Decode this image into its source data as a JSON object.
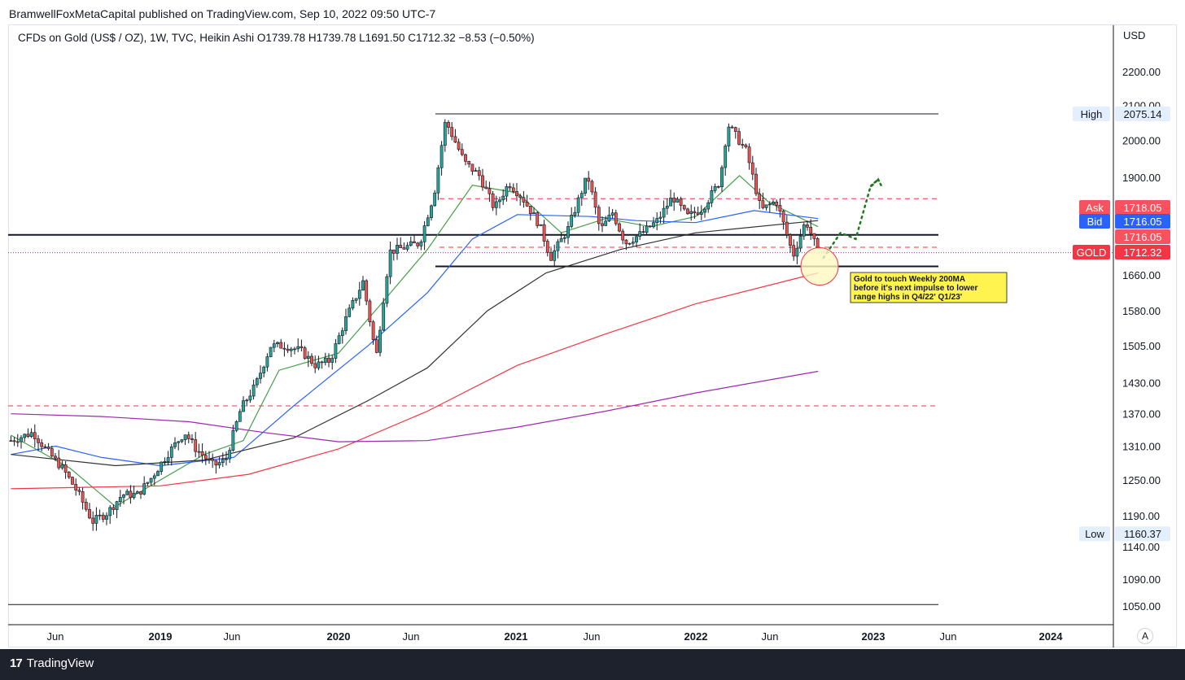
{
  "publisher": "BramwellFoxMetaCapital published on TradingView.com, Sep 10, 2022 09:50 UTC-7",
  "legend": "CFDs on Gold (US$ / OZ), 1W, TVC, Heikin Ashi  O1739.78  H1739.78  L1691.50  C1712.32  −8.53 (−0.50%)",
  "footer": {
    "logo_mark": "17",
    "logo_text": "TradingView"
  },
  "auto_button": "A",
  "colors": {
    "up": "#26a69a",
    "down": "#ef5350",
    "ma_green": "#43a047",
    "ma_blue": "#2962ff",
    "ma_black": "#333333",
    "ma_red": "#f23645",
    "ma_purple": "#9c27b0"
  },
  "chart_data": {
    "type": "candlestick",
    "symbol": "CFDs on Gold (US$ / OZ)",
    "timeframe": "1W",
    "chart_style": "Heikin Ashi",
    "ohlc_last": {
      "open": 1739.78,
      "high": 1739.78,
      "low": 1691.5,
      "close": 1712.32,
      "change": -8.53,
      "change_pct": -0.5
    },
    "y_axis": {
      "unit": "USD",
      "scale": "log",
      "ticks": [
        2200,
        2100,
        2000,
        1900,
        1660,
        1580,
        1505,
        1430,
        1370,
        1310,
        1250,
        1190,
        1140,
        1090,
        1050
      ]
    },
    "x_axis": {
      "ticks": [
        "Jun",
        "2019",
        "Jun",
        "2020",
        "Jun",
        "2021",
        "Jun",
        "2022",
        "Jun",
        "2023",
        "Jun",
        "2024"
      ]
    },
    "price_labels": [
      {
        "label": "High",
        "value": "2075.14"
      },
      {
        "label": "Ask",
        "value": "1718.05"
      },
      {
        "label": "Bid",
        "value": "1716.05"
      },
      {
        "label": "",
        "value": "1716.05"
      },
      {
        "label": "GOLD",
        "value": "1712.32"
      },
      {
        "label": "Low",
        "value": "1160.37"
      }
    ],
    "horizontal_levels": [
      2075,
      1845,
      1755,
      1725,
      1680,
      1385,
      1052
    ],
    "price_path": [
      [
        "2018-03-01",
        1320
      ],
      [
        "2018-04-15",
        1335
      ],
      [
        "2018-05-15",
        1300
      ],
      [
        "2018-06-15",
        1270
      ],
      [
        "2018-07-15",
        1230
      ],
      [
        "2018-08-15",
        1180
      ],
      [
        "2018-09-15",
        1195
      ],
      [
        "2018-10-15",
        1225
      ],
      [
        "2018-11-15",
        1225
      ],
      [
        "2018-12-15",
        1255
      ],
      [
        "2019-01-15",
        1295
      ],
      [
        "2019-02-20",
        1335
      ],
      [
        "2019-03-15",
        1305
      ],
      [
        "2019-04-20",
        1275
      ],
      [
        "2019-05-15",
        1285
      ],
      [
        "2019-06-15",
        1380
      ],
      [
        "2019-07-15",
        1425
      ],
      [
        "2019-08-15",
        1505
      ],
      [
        "2019-09-15",
        1505
      ],
      [
        "2019-10-15",
        1495
      ],
      [
        "2019-11-15",
        1465
      ],
      [
        "2019-12-15",
        1475
      ],
      [
        "2020-01-15",
        1560
      ],
      [
        "2020-02-20",
        1645
      ],
      [
        "2020-03-18",
        1480
      ],
      [
        "2020-04-15",
        1715
      ],
      [
        "2020-05-15",
        1725
      ],
      [
        "2020-06-15",
        1735
      ],
      [
        "2020-07-15",
        1860
      ],
      [
        "2020-08-07",
        2055
      ],
      [
        "2020-09-15",
        1940
      ],
      [
        "2020-10-15",
        1905
      ],
      [
        "2020-11-15",
        1820
      ],
      [
        "2020-12-15",
        1885
      ],
      [
        "2021-01-10",
        1850
      ],
      [
        "2021-02-15",
        1780
      ],
      [
        "2021-03-10",
        1700
      ],
      [
        "2021-04-15",
        1770
      ],
      [
        "2021-05-25",
        1905
      ],
      [
        "2021-06-20",
        1765
      ],
      [
        "2021-07-15",
        1810
      ],
      [
        "2021-08-10",
        1735
      ],
      [
        "2021-09-15",
        1760
      ],
      [
        "2021-10-15",
        1790
      ],
      [
        "2021-11-15",
        1850
      ],
      [
        "2021-12-15",
        1800
      ],
      [
        "2022-01-15",
        1820
      ],
      [
        "2022-02-20",
        1890
      ],
      [
        "2022-03-08",
        2045
      ],
      [
        "2022-04-15",
        1970
      ],
      [
        "2022-05-15",
        1815
      ],
      [
        "2022-06-15",
        1840
      ],
      [
        "2022-07-20",
        1705
      ],
      [
        "2022-08-15",
        1790
      ],
      [
        "2022-09-09",
        1712
      ]
    ],
    "moving_averages": [
      {
        "label": "green",
        "color": "#43a047",
        "points": [
          [
            "2018-03-01",
            1330
          ],
          [
            "2018-07-01",
            1270
          ],
          [
            "2018-10-01",
            1205
          ],
          [
            "2019-01-01",
            1250
          ],
          [
            "2019-04-01",
            1295
          ],
          [
            "2019-06-20",
            1320
          ],
          [
            "2019-09-01",
            1455
          ],
          [
            "2020-01-01",
            1490
          ],
          [
            "2020-04-01",
            1600
          ],
          [
            "2020-07-01",
            1720
          ],
          [
            "2020-10-01",
            1880
          ],
          [
            "2021-01-01",
            1860
          ],
          [
            "2021-04-01",
            1760
          ],
          [
            "2021-07-01",
            1795
          ],
          [
            "2021-10-01",
            1775
          ],
          [
            "2022-01-01",
            1800
          ],
          [
            "2022-04-01",
            1905
          ],
          [
            "2022-06-01",
            1835
          ],
          [
            "2022-09-09",
            1775
          ]
        ]
      },
      {
        "label": "blue",
        "color": "#2962ff",
        "points": [
          [
            "2018-03-01",
            1295
          ],
          [
            "2018-06-01",
            1310
          ],
          [
            "2018-09-01",
            1290
          ],
          [
            "2019-01-01",
            1275
          ],
          [
            "2019-06-01",
            1290
          ],
          [
            "2019-10-01",
            1385
          ],
          [
            "2020-03-01",
            1505
          ],
          [
            "2020-07-01",
            1620
          ],
          [
            "2020-10-01",
            1745
          ],
          [
            "2021-01-01",
            1805
          ],
          [
            "2021-06-01",
            1800
          ],
          [
            "2021-09-01",
            1790
          ],
          [
            "2022-01-01",
            1785
          ],
          [
            "2022-05-01",
            1815
          ],
          [
            "2022-09-09",
            1795
          ]
        ]
      },
      {
        "label": "black",
        "color": "#333333",
        "points": [
          [
            "2018-03-01",
            1295
          ],
          [
            "2018-10-01",
            1275
          ],
          [
            "2019-04-01",
            1285
          ],
          [
            "2019-10-01",
            1325
          ],
          [
            "2020-03-01",
            1395
          ],
          [
            "2020-07-01",
            1460
          ],
          [
            "2020-11-01",
            1580
          ],
          [
            "2021-03-01",
            1665
          ],
          [
            "2021-08-01",
            1720
          ],
          [
            "2022-01-01",
            1760
          ],
          [
            "2022-09-09",
            1790
          ]
        ]
      },
      {
        "label": "red",
        "color": "#f23645",
        "points": [
          [
            "2018-03-01",
            1235
          ],
          [
            "2019-01-01",
            1240
          ],
          [
            "2019-07-01",
            1260
          ],
          [
            "2020-01-01",
            1305
          ],
          [
            "2020-07-01",
            1375
          ],
          [
            "2021-01-01",
            1465
          ],
          [
            "2021-07-01",
            1530
          ],
          [
            "2022-01-01",
            1595
          ],
          [
            "2022-09-09",
            1665
          ]
        ]
      },
      {
        "label": "purple",
        "color": "#9c27b0",
        "points": [
          [
            "2018-03-01",
            1370
          ],
          [
            "2018-09-01",
            1365
          ],
          [
            "2019-03-01",
            1355
          ],
          [
            "2019-08-01",
            1335
          ],
          [
            "2020-01-01",
            1318
          ],
          [
            "2020-07-01",
            1320
          ],
          [
            "2021-01-01",
            1345
          ],
          [
            "2021-07-01",
            1375
          ],
          [
            "2022-01-01",
            1410
          ],
          [
            "2022-09-09",
            1453
          ]
        ]
      }
    ],
    "projection": [
      [
        "2022-09-20",
        1700
      ],
      [
        "2022-10-25",
        1760
      ],
      [
        "2022-11-25",
        1745
      ],
      [
        "2022-12-25",
        1875
      ],
      [
        "2023-01-10",
        1895
      ]
    ],
    "annotation": "Gold to touch Weekly 200MA\nbefore it's next impulse to lower\nrange highs in Q4/22' Q1/23'"
  }
}
